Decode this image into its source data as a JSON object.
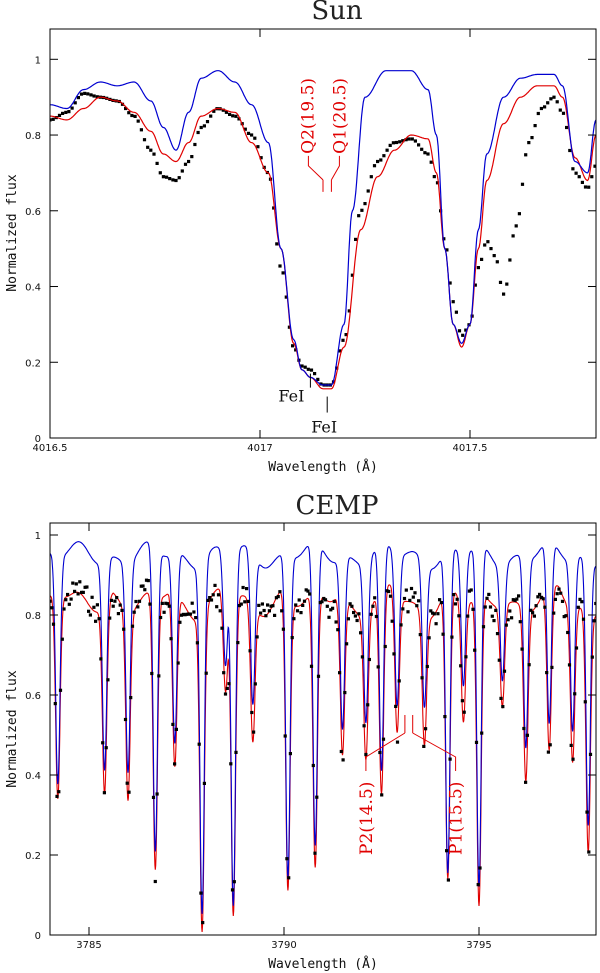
{
  "chart_data": [
    {
      "type": "line",
      "title": "Sun",
      "xlabel": "Wavelength (Å)",
      "ylabel": "Normalized flux",
      "xlim": [
        4016.5,
        4017.8
      ],
      "ylim": [
        0,
        1.08
      ],
      "x_ticks": [
        {
          "value": 4016.5,
          "label": "4016.5"
        },
        {
          "value": 4017,
          "label": "4017"
        },
        {
          "value": 4017.5,
          "label": "4017.5"
        }
      ],
      "y_ticks": [
        {
          "value": 0,
          "label": "0"
        },
        {
          "value": 0.2,
          "label": "0.2"
        },
        {
          "value": 0.4,
          "label": "0.4"
        },
        {
          "value": 0.6,
          "label": "0.6"
        },
        {
          "value": 0.8,
          "label": "0.8"
        },
        {
          "value": 1,
          "label": "1"
        }
      ],
      "series": [
        {
          "name": "observed",
          "style": "points",
          "color": "#000000",
          "x": [
            4016.5,
            4016.54,
            4016.58,
            4016.62,
            4016.66,
            4016.7,
            4016.74,
            4016.77,
            4016.8,
            4016.83,
            4016.86,
            4016.9,
            4016.94,
            4016.98,
            4017.02,
            4017.05,
            4017.08,
            4017.1,
            4017.12,
            4017.15,
            4017.17,
            4017.2,
            4017.24,
            4017.28,
            4017.32,
            4017.36,
            4017.4,
            4017.42,
            4017.44,
            4017.46,
            4017.48,
            4017.5,
            4017.52,
            4017.54,
            4017.56,
            4017.58,
            4017.61,
            4017.64,
            4017.67,
            4017.7,
            4017.72,
            4017.75,
            4017.78,
            4017.8
          ],
          "y": [
            0.84,
            0.86,
            0.91,
            0.9,
            0.89,
            0.85,
            0.76,
            0.69,
            0.68,
            0.73,
            0.82,
            0.87,
            0.85,
            0.8,
            0.7,
            0.45,
            0.24,
            0.19,
            0.18,
            0.14,
            0.14,
            0.26,
            0.6,
            0.73,
            0.78,
            0.79,
            0.75,
            0.68,
            0.52,
            0.36,
            0.27,
            0.3,
            0.45,
            0.52,
            0.48,
            0.38,
            0.56,
            0.78,
            0.87,
            0.9,
            0.86,
            0.7,
            0.66,
            0.72
          ]
        },
        {
          "name": "model-red",
          "style": "line",
          "color": "#e00000",
          "x": [
            4016.5,
            4016.54,
            4016.58,
            4016.62,
            4016.66,
            4016.7,
            4016.74,
            4016.77,
            4016.8,
            4016.83,
            4016.86,
            4016.9,
            4016.94,
            4016.98,
            4017.02,
            4017.05,
            4017.08,
            4017.1,
            4017.12,
            4017.15,
            4017.17,
            4017.2,
            4017.24,
            4017.28,
            4017.32,
            4017.36,
            4017.4,
            4017.42,
            4017.44,
            4017.46,
            4017.48,
            4017.5,
            4017.52,
            4017.54,
            4017.58,
            4017.62,
            4017.66,
            4017.7,
            4017.72,
            4017.75,
            4017.78,
            4017.8
          ],
          "y": [
            0.85,
            0.84,
            0.87,
            0.9,
            0.89,
            0.86,
            0.81,
            0.75,
            0.73,
            0.78,
            0.85,
            0.87,
            0.86,
            0.78,
            0.7,
            0.5,
            0.25,
            0.18,
            0.16,
            0.13,
            0.13,
            0.24,
            0.55,
            0.69,
            0.76,
            0.8,
            0.79,
            0.7,
            0.5,
            0.3,
            0.24,
            0.3,
            0.5,
            0.68,
            0.83,
            0.9,
            0.93,
            0.93,
            0.9,
            0.74,
            0.68,
            0.8
          ]
        },
        {
          "name": "model-blue",
          "style": "line",
          "color": "#0000d0",
          "x": [
            4016.5,
            4016.54,
            4016.58,
            4016.62,
            4016.66,
            4016.7,
            4016.74,
            4016.77,
            4016.8,
            4016.83,
            4016.86,
            4016.9,
            4016.94,
            4016.98,
            4017.02,
            4017.05,
            4017.08,
            4017.1,
            4017.12,
            4017.15,
            4017.17,
            4017.2,
            4017.22,
            4017.25,
            4017.3,
            4017.36,
            4017.4,
            4017.42,
            4017.44,
            4017.46,
            4017.48,
            4017.5,
            4017.52,
            4017.54,
            4017.58,
            4017.62,
            4017.66,
            4017.7,
            4017.72,
            4017.75,
            4017.78,
            4017.8
          ],
          "y": [
            0.88,
            0.87,
            0.92,
            0.94,
            0.93,
            0.94,
            0.89,
            0.82,
            0.76,
            0.86,
            0.95,
            0.97,
            0.94,
            0.88,
            0.78,
            0.5,
            0.26,
            0.18,
            0.16,
            0.14,
            0.14,
            0.3,
            0.6,
            0.9,
            0.97,
            0.97,
            0.92,
            0.8,
            0.5,
            0.3,
            0.25,
            0.3,
            0.55,
            0.75,
            0.9,
            0.95,
            0.96,
            0.96,
            0.93,
            0.73,
            0.7,
            0.84
          ]
        }
      ],
      "annotations": [
        {
          "text": "Q2(19.5)",
          "x": 4017.12,
          "y": 0.65,
          "color": "#e00000",
          "orientation": "vertical"
        },
        {
          "text": "Q1(20.5)",
          "x": 4017.17,
          "y": 0.65,
          "color": "#e00000",
          "orientation": "vertical"
        },
        {
          "text": "FeI",
          "x": 4017.12,
          "y": 0.17,
          "color": "#000000",
          "orientation": "horizontal"
        },
        {
          "text": "FeI",
          "x": 4017.16,
          "y": 0.12,
          "color": "#000000",
          "orientation": "horizontal"
        }
      ]
    },
    {
      "type": "line",
      "title": "CEMP",
      "xlabel": "Wavelength (Å)",
      "ylabel": "Normalized flux",
      "xlim": [
        3784,
        3798
      ],
      "ylim": [
        0,
        1.03
      ],
      "x_ticks": [
        {
          "value": 3785,
          "label": "3785"
        },
        {
          "value": 3790,
          "label": "3790"
        },
        {
          "value": 3795,
          "label": "3795"
        }
      ],
      "y_ticks": [
        {
          "value": 0,
          "label": "0"
        },
        {
          "value": 0.2,
          "label": "0.2"
        },
        {
          "value": 0.4,
          "label": "0.4"
        },
        {
          "value": 0.6,
          "label": "0.6"
        },
        {
          "value": 0.8,
          "label": "0.8"
        },
        {
          "value": 1,
          "label": "1"
        }
      ],
      "lines": [
        {
          "center": 3784.2,
          "depth": 0.6
        },
        {
          "center": 3785.4,
          "depth": 0.55
        },
        {
          "center": 3786.0,
          "depth": 0.55
        },
        {
          "center": 3786.7,
          "depth": 0.8
        },
        {
          "center": 3787.2,
          "depth": 0.5
        },
        {
          "center": 3787.9,
          "depth": 0.92
        },
        {
          "center": 3788.5,
          "depth": 0.3
        },
        {
          "center": 3788.7,
          "depth": 0.93
        },
        {
          "center": 3789.2,
          "depth": 0.4
        },
        {
          "center": 3790.1,
          "depth": 0.85
        },
        {
          "center": 3790.8,
          "depth": 0.8
        },
        {
          "center": 3791.5,
          "depth": 0.45
        },
        {
          "center": 3792.1,
          "depth": 0.42
        },
        {
          "center": 3792.5,
          "depth": 0.6
        },
        {
          "center": 3792.9,
          "depth": 0.4
        },
        {
          "center": 3793.6,
          "depth": 0.38
        },
        {
          "center": 3794.2,
          "depth": 0.85
        },
        {
          "center": 3794.6,
          "depth": 0.35
        },
        {
          "center": 3795.0,
          "depth": 0.9
        },
        {
          "center": 3795.6,
          "depth": 0.3
        },
        {
          "center": 3796.2,
          "depth": 0.5
        },
        {
          "center": 3796.8,
          "depth": 0.48
        },
        {
          "center": 3797.4,
          "depth": 0.45
        },
        {
          "center": 3797.8,
          "depth": 0.7
        }
      ],
      "continuum": {
        "observed": 0.86,
        "model_red": 0.86,
        "model_blue": 0.95
      },
      "series_names": [
        "observed",
        "model-red",
        "model-blue"
      ],
      "series_colors": {
        "observed": "#000000",
        "model-red": "#e00000",
        "model-blue": "#0000d0"
      },
      "annotations": [
        {
          "text": "P2(14.5)",
          "x": 3792.1,
          "y": 0.3,
          "color": "#e00000",
          "orientation": "vertical"
        },
        {
          "text": "P1(15.5)",
          "x": 3794.4,
          "y": 0.3,
          "color": "#e00000",
          "orientation": "vertical"
        }
      ]
    }
  ]
}
